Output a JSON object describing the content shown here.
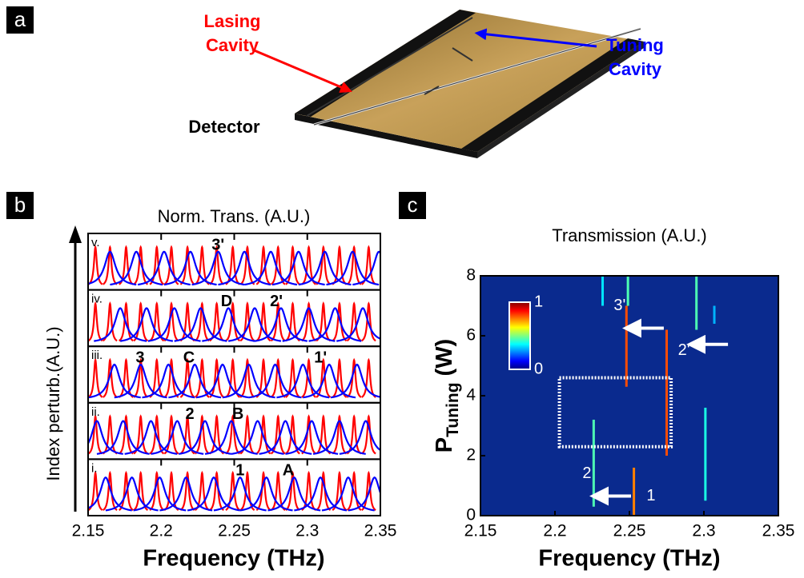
{
  "figure": {
    "panel_labels": [
      "a",
      "b",
      "c"
    ],
    "lasing_label": [
      "Lasing",
      "Cavity"
    ],
    "tuning_label": [
      "Tuning",
      "Cavity"
    ],
    "detector_label": "Detector"
  },
  "chart_data": [
    {
      "type": "peaks",
      "title": "Norm. Trans. (A.U.)",
      "y_label": "Index perturb.(A.U.)",
      "x_label": "Frequency (THz)",
      "xlim": [
        2.15,
        2.35
      ],
      "xticks": [
        2.15,
        2.2,
        2.25,
        2.3,
        2.35
      ],
      "rows": [
        {
          "label": "i.",
          "annotations": [
            {
              "text": "1",
              "x": 2.254
            },
            {
              "text": "A",
              "x": 2.287
            }
          ],
          "series": [
            {
              "color": "#ff0000",
              "peaks": [
                2.155,
                2.165,
                2.176,
                2.186,
                2.197,
                2.207,
                2.218,
                2.228,
                2.238,
                2.249,
                2.259,
                2.27,
                2.28,
                2.29,
                2.301,
                2.311,
                2.322,
                2.332,
                2.342
              ]
            },
            {
              "color": "#0000ff",
              "peaks": [
                2.162,
                2.18,
                2.199,
                2.217,
                2.236,
                2.254,
                2.272,
                2.291,
                2.309,
                2.328,
                2.346
              ]
            }
          ]
        },
        {
          "label": "ii.",
          "annotations": [
            {
              "text": "2",
              "x": 2.2196
            },
            {
              "text": "B",
              "x": 2.2525
            }
          ],
          "series": [
            {
              "color": "#ff0000",
              "peaks": [
                2.155,
                2.165,
                2.176,
                2.186,
                2.197,
                2.207,
                2.218,
                2.228,
                2.238,
                2.249,
                2.259,
                2.27,
                2.28,
                2.29,
                2.301,
                2.311,
                2.322,
                2.332,
                2.342
              ]
            },
            {
              "color": "#0000ff",
              "peaks": [
                2.156,
                2.174,
                2.193,
                2.211,
                2.23,
                2.248,
                2.266,
                2.285,
                2.303,
                2.322,
                2.34
              ]
            }
          ]
        },
        {
          "label": "iii.",
          "annotations": [
            {
              "text": "3",
              "x": 2.1856
            },
            {
              "text": "C",
              "x": 2.219
            },
            {
              "text": "1'",
              "x": 2.309
            }
          ],
          "series": [
            {
              "color": "#ff0000",
              "peaks": [
                2.155,
                2.165,
                2.176,
                2.186,
                2.197,
                2.207,
                2.218,
                2.228,
                2.238,
                2.249,
                2.259,
                2.27,
                2.28,
                2.29,
                2.301,
                2.311,
                2.322,
                2.332,
                2.342
              ]
            },
            {
              "color": "#0000ff",
              "peaks": [
                2.168,
                2.186,
                2.205,
                2.223,
                2.242,
                2.26,
                2.278,
                2.297,
                2.315,
                2.334
              ]
            }
          ]
        },
        {
          "label": "iv.",
          "annotations": [
            {
              "text": "D",
              "x": 2.2448
            },
            {
              "text": "2'",
              "x": 2.2788
            }
          ],
          "series": [
            {
              "color": "#ff0000",
              "peaks": [
                2.155,
                2.165,
                2.176,
                2.186,
                2.197,
                2.207,
                2.218,
                2.228,
                2.238,
                2.249,
                2.259,
                2.27,
                2.28,
                2.29,
                2.301,
                2.311,
                2.322,
                2.332,
                2.342
              ]
            },
            {
              "color": "#0000ff",
              "peaks": [
                2.172,
                2.19,
                2.209,
                2.227,
                2.246,
                2.264,
                2.282,
                2.301,
                2.319,
                2.338
              ]
            }
          ]
        },
        {
          "label": "v.",
          "annotations": [
            {
              "text": "3'",
              "x": 2.2389
            }
          ],
          "series": [
            {
              "color": "#ff0000",
              "peaks": [
                2.155,
                2.165,
                2.176,
                2.186,
                2.197,
                2.207,
                2.218,
                2.228,
                2.238,
                2.249,
                2.259,
                2.27,
                2.28,
                2.29,
                2.301,
                2.311,
                2.322,
                2.332,
                2.342
              ]
            },
            {
              "color": "#0000ff",
              "peaks": [
                2.165,
                2.183,
                2.202,
                2.22,
                2.239,
                2.257,
                2.275,
                2.294,
                2.312,
                2.331,
                2.349
              ]
            }
          ]
        }
      ]
    },
    {
      "type": "heatmap",
      "title": "Transmission (A.U.)",
      "x_label": "Frequency (THz)",
      "y_label": {
        "main": "P",
        "sub": "Tuning",
        "unit": "(W)"
      },
      "xlim": [
        2.15,
        2.35
      ],
      "xticks": [
        2.15,
        2.2,
        2.25,
        2.3,
        2.35
      ],
      "ylim": [
        0,
        8
      ],
      "yticks": [
        0,
        2,
        4,
        6,
        8
      ],
      "colormap": "jet",
      "colorbar_ticks": [
        0,
        1
      ],
      "streaks": [
        {
          "x": 2.253,
          "y": [
            0,
            1.6
          ],
          "value": 0.75
        },
        {
          "x": 2.226,
          "y": [
            0.3,
            3.2
          ],
          "value": 0.45
        },
        {
          "x": 2.248,
          "y": [
            4.3,
            7.0
          ],
          "value": 0.8
        },
        {
          "x": 2.249,
          "y": [
            7.0,
            8
          ],
          "value": 0.45
        },
        {
          "x": 2.275,
          "y": [
            2.0,
            6.2
          ],
          "value": 0.8
        },
        {
          "x": 2.301,
          "y": [
            0.5,
            3.6
          ],
          "value": 0.4
        },
        {
          "x": 2.295,
          "y": [
            6.2,
            8
          ],
          "value": 0.45
        },
        {
          "x": 2.232,
          "y": [
            7.0,
            8
          ],
          "value": 0.35
        },
        {
          "x": 2.307,
          "y": [
            6.4,
            7.0
          ],
          "value": 0.3
        }
      ],
      "highlight": {
        "x": [
          2.203,
          2.278
        ],
        "y": [
          2.3,
          4.6
        ]
      },
      "annotations": [
        {
          "text": "3'",
          "x": 2.2435,
          "y": 7.0,
          "arrow": true
        },
        {
          "text": "2'",
          "x": 2.2866,
          "y": 5.5,
          "arrow": true
        },
        {
          "text": "2",
          "x": 2.2215,
          "y": 1.4,
          "arrow": true
        },
        {
          "text": "1",
          "x": 2.2645,
          "y": 0.65,
          "arrow": false
        }
      ]
    }
  ]
}
